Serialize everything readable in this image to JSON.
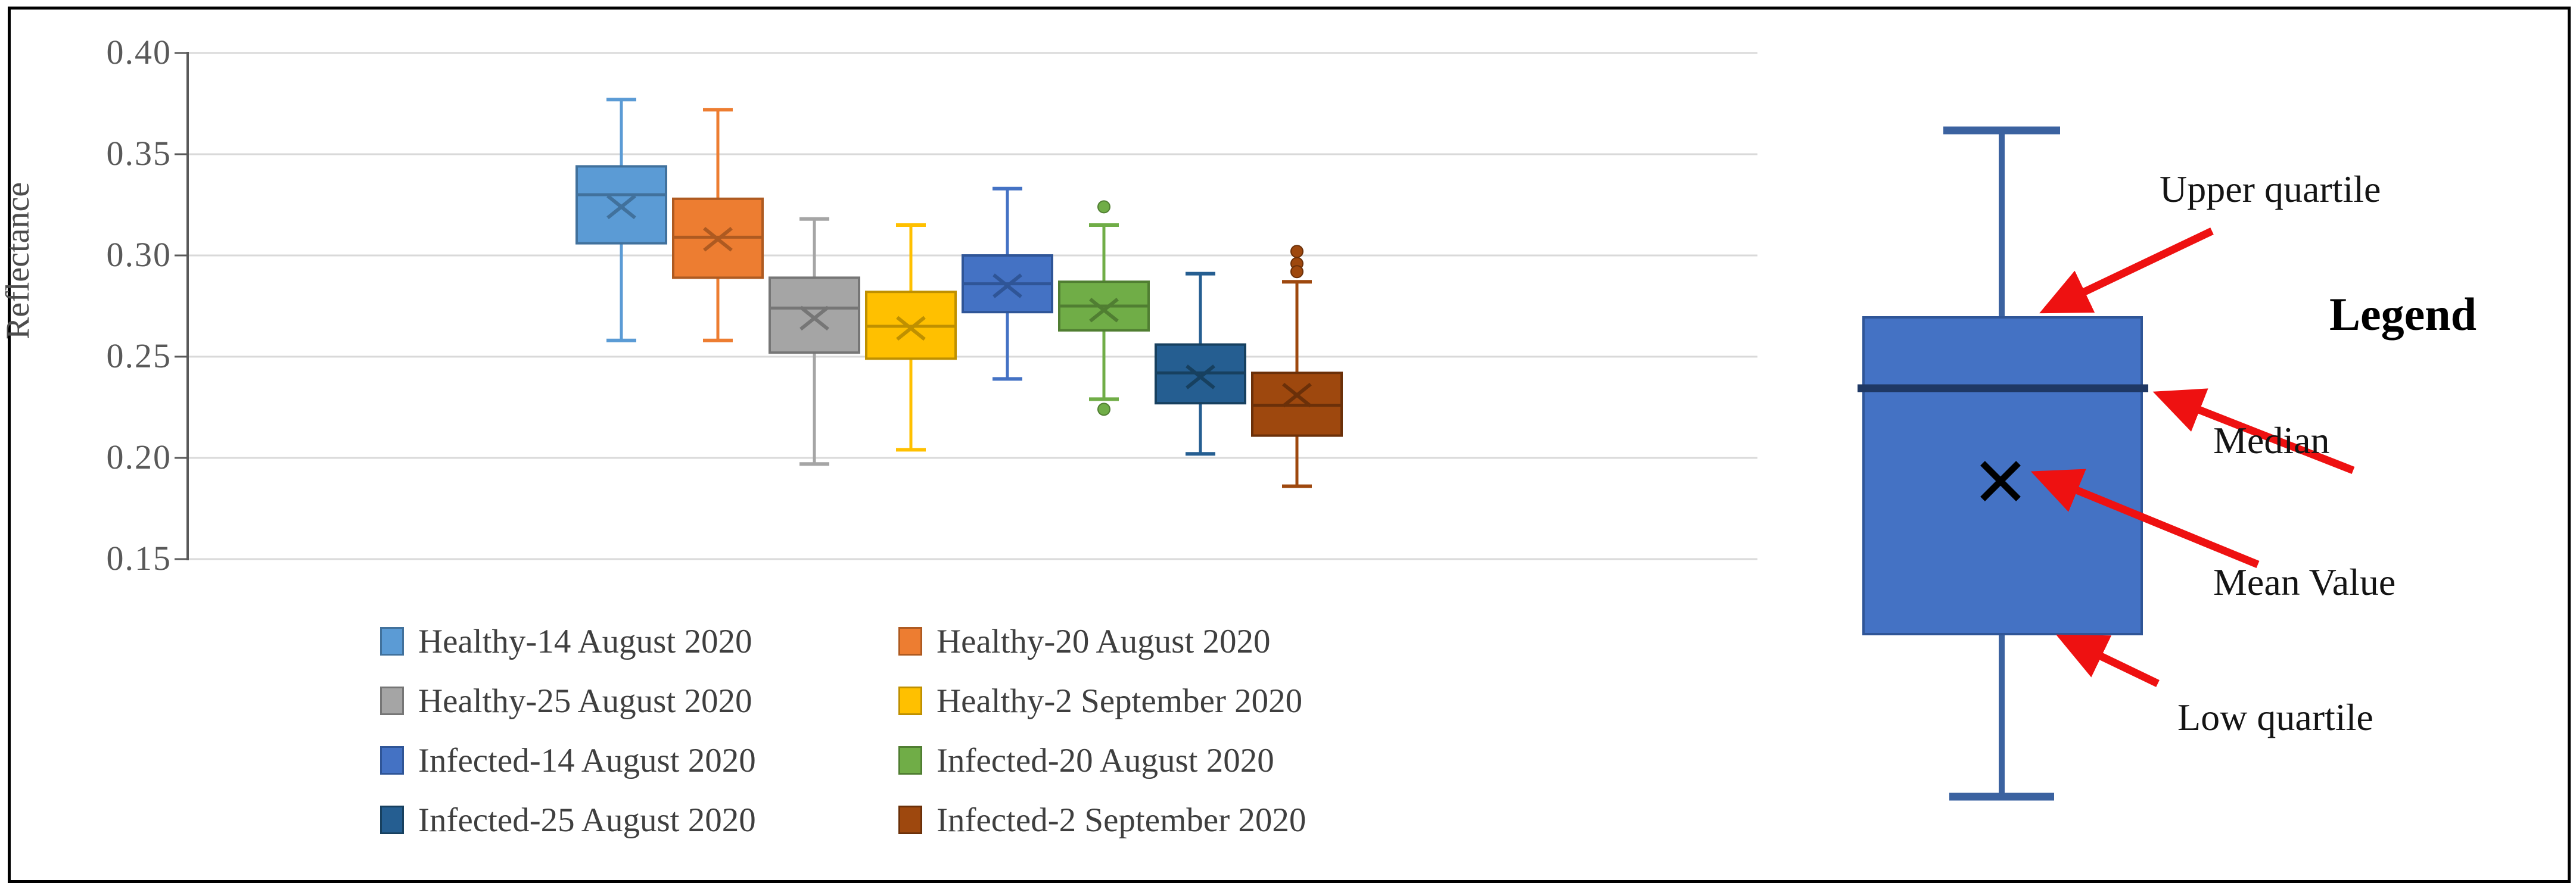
{
  "figure": {
    "background": "#ffffff",
    "border_color": "#000000"
  },
  "chart_data": {
    "type": "boxplot",
    "title": "",
    "ylabel": "Reflectance",
    "xlabel": "",
    "ylim": [
      0.15,
      0.4
    ],
    "grid": true,
    "legend_position": "bottom",
    "legend_columns": 2,
    "yticks": [
      0.4,
      0.35,
      0.3,
      0.25,
      0.2,
      0.15
    ],
    "ytick_labels": [
      "0.40",
      "0.35",
      "0.30",
      "0.25",
      "0.20",
      "0.15"
    ],
    "series": [
      {
        "name": "Healthy-14 August 2020",
        "color": "#5B9BD5",
        "dark": "#41719C",
        "whisker_low": 0.258,
        "q1": 0.306,
        "median": 0.33,
        "mean": 0.324,
        "q3": 0.344,
        "whisker_high": 0.377,
        "outliers": []
      },
      {
        "name": "Healthy-20 August 2020",
        "color": "#ED7D31",
        "dark": "#AE5A21",
        "whisker_low": 0.258,
        "q1": 0.289,
        "median": 0.309,
        "mean": 0.308,
        "q3": 0.328,
        "whisker_high": 0.372,
        "outliers": []
      },
      {
        "name": "Healthy-25 August 2020",
        "color": "#A5A5A5",
        "dark": "#767676",
        "whisker_low": 0.197,
        "q1": 0.252,
        "median": 0.274,
        "mean": 0.269,
        "q3": 0.289,
        "whisker_high": 0.318,
        "outliers": []
      },
      {
        "name": "Healthy-2 September 2020",
        "color": "#FFC000",
        "dark": "#BF9000",
        "whisker_low": 0.204,
        "q1": 0.249,
        "median": 0.265,
        "mean": 0.264,
        "q3": 0.282,
        "whisker_high": 0.315,
        "outliers": []
      },
      {
        "name": "Infected-14 August 2020",
        "color": "#4472C4",
        "dark": "#2F5597",
        "whisker_low": 0.239,
        "q1": 0.272,
        "median": 0.286,
        "mean": 0.285,
        "q3": 0.3,
        "whisker_high": 0.333,
        "outliers": []
      },
      {
        "name": "Infected-20 August 2020",
        "color": "#70AD47",
        "dark": "#507E32",
        "whisker_low": 0.229,
        "q1": 0.263,
        "median": 0.275,
        "mean": 0.273,
        "q3": 0.287,
        "whisker_high": 0.315,
        "outliers": [
          0.324,
          0.224
        ]
      },
      {
        "name": "Infected-25 August 2020",
        "color": "#255E91",
        "dark": "#17405F",
        "whisker_low": 0.202,
        "q1": 0.227,
        "median": 0.242,
        "mean": 0.24,
        "q3": 0.256,
        "whisker_high": 0.291,
        "outliers": []
      },
      {
        "name": "Infected-2 September 2020",
        "color": "#9E480E",
        "dark": "#6B3009",
        "whisker_low": 0.186,
        "q1": 0.211,
        "median": 0.226,
        "mean": 0.231,
        "q3": 0.242,
        "whisker_high": 0.287,
        "outliers": [
          0.302,
          0.296,
          0.292
        ]
      }
    ],
    "gridline_color": "#D9D9D9",
    "axis_color": "#595959"
  },
  "diagram": {
    "title": "Legend",
    "labels": {
      "upper_quartile": "Upper quartile",
      "median": "Median",
      "mean": "Mean Value",
      "low_quartile": "Low quartile"
    },
    "box_fill": "#4472C4",
    "box_stroke": "#2F5597",
    "median_color": "#1F3864",
    "whisker_color": "#3B62A0",
    "arrow_color": "#EE1111",
    "mean_marker_color": "#000000",
    "mean_marker": "×"
  }
}
